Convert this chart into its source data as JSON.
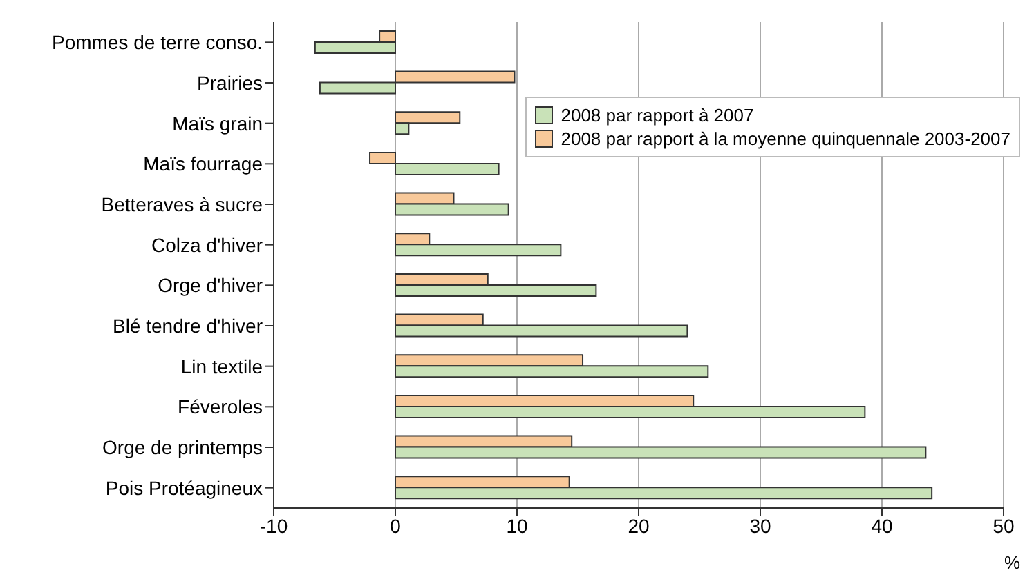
{
  "chart_data": {
    "type": "bar",
    "orientation": "horizontal",
    "xlabel": "%",
    "categories": [
      "Pommes de terre conso.",
      "Prairies",
      "Maïs grain",
      "Maïs fourrage",
      "Betteraves à sucre",
      "Colza d'hiver",
      "Orge d'hiver",
      "Blé tendre d'hiver",
      "Lin textile",
      "Féveroles",
      "Orge de printemps",
      "Pois Protéagineux"
    ],
    "series": [
      {
        "name": "2008 par rapport à 2007",
        "color": "#c9e2b8",
        "values": [
          -6.6,
          -6.2,
          1.1,
          8.5,
          9.3,
          13.6,
          16.5,
          24.0,
          25.7,
          38.6,
          43.6,
          44.1
        ]
      },
      {
        "name": "2008 par rapport à la moyenne quinquennale 2003-2007",
        "color": "#f8c99a",
        "values": [
          -1.3,
          9.8,
          5.3,
          -2.1,
          4.8,
          2.8,
          7.6,
          7.2,
          15.4,
          24.5,
          14.5,
          14.3
        ]
      }
    ],
    "xlim": [
      -10,
      50
    ],
    "xticks": [
      -10,
      0,
      10,
      20,
      30,
      40,
      50
    ],
    "grid": "x",
    "legend": "top right"
  }
}
